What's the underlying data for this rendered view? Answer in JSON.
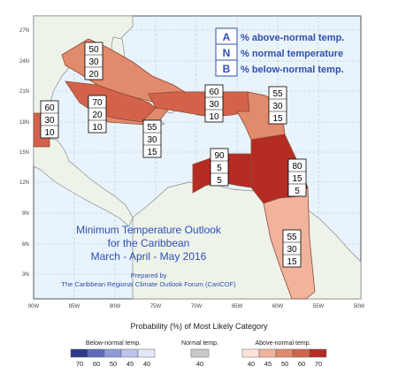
{
  "map": {
    "lat_labels": [
      "27N",
      "24N",
      "21N",
      "18N",
      "15N",
      "12N",
      "9N",
      "6N",
      "3N"
    ],
    "lon_labels": [
      "90W",
      "85W",
      "80W",
      "75W",
      "70W",
      "65W",
      "60W",
      "55W",
      "50W"
    ],
    "title_lines": [
      "Minimum Temperature Outlook",
      "for the Caribbean",
      "March - April - May 2016"
    ],
    "prepared_by": "Prepared by",
    "forum": "The Caribbean Regional Climate Outlook Forum (CariCOF)",
    "colors": {
      "ocean": "#e8f3fb",
      "land": "#eef3ea",
      "above_40": "#f1b39c",
      "above_50": "#e28a6c",
      "above_60": "#d4624a",
      "above_70": "#b52c22",
      "text_blue": "#2f4fb0"
    }
  },
  "key": {
    "items": [
      {
        "letter": "A",
        "text": "% above-normal temp."
      },
      {
        "letter": "N",
        "text": "% normal temperature"
      },
      {
        "letter": "B",
        "text": "% below-normal temp."
      }
    ]
  },
  "regions": [
    {
      "id": "bahamas",
      "values": [
        "50",
        "30",
        "20"
      ]
    },
    {
      "id": "cuba-west",
      "values": [
        "70",
        "20",
        "10"
      ]
    },
    {
      "id": "mexico-belize",
      "values": [
        "60",
        "30",
        "10"
      ]
    },
    {
      "id": "greater-antilles",
      "values": [
        "60",
        "30",
        "10"
      ]
    },
    {
      "id": "jamaica-south",
      "values": [
        "55",
        "30",
        "15"
      ]
    },
    {
      "id": "leeward",
      "values": [
        "55",
        "30",
        "15"
      ]
    },
    {
      "id": "venezuela-coast",
      "values": [
        "90",
        "5",
        "5"
      ]
    },
    {
      "id": "eastern-caribbean",
      "values": [
        "80",
        "15",
        "5"
      ]
    },
    {
      "id": "guianas",
      "values": [
        "55",
        "30",
        "15"
      ]
    }
  ],
  "legend": {
    "title": "Probability (%) of Most Likely Category",
    "below_label": "Below-normal temp.",
    "normal_label": "Normal temp.",
    "above_label": "Above-normal temp.",
    "below_ticks": [
      "70",
      "60",
      "50",
      "45",
      "40"
    ],
    "normal_ticks": [
      "40"
    ],
    "above_ticks": [
      "40",
      "45",
      "50",
      "60",
      "70"
    ],
    "below_colors": [
      "#2d3a8c",
      "#5d6cbc",
      "#8e9bd8",
      "#bcc5ea",
      "#e3e7f7"
    ],
    "normal_color": "#c8c8c8",
    "above_colors": [
      "#fbe3d8",
      "#f1b39c",
      "#e28a6c",
      "#d4624a",
      "#b52c22"
    ]
  }
}
